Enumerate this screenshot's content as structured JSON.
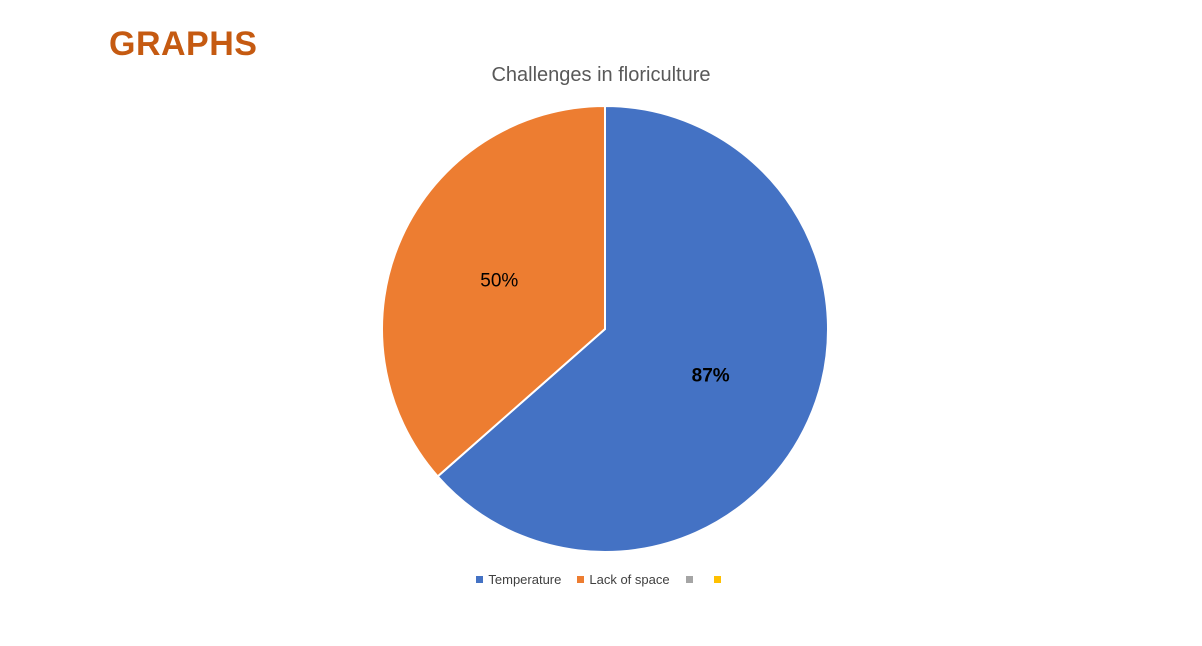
{
  "heading": {
    "text": "GRAPHS",
    "color": "#C55A11"
  },
  "chart_data": {
    "type": "pie",
    "title": "Challenges in floriculture",
    "categories": [
      "Temperature",
      "Lack of space",
      "",
      ""
    ],
    "values": [
      87,
      50,
      0,
      0
    ],
    "data_labels": [
      "87%",
      "50%",
      "",
      ""
    ],
    "colors": [
      "#4472C4",
      "#ED7D31",
      "#A5A5A5",
      "#FFC000"
    ],
    "legend_position": "bottom",
    "label_styles": [
      "bold",
      "normal"
    ]
  }
}
